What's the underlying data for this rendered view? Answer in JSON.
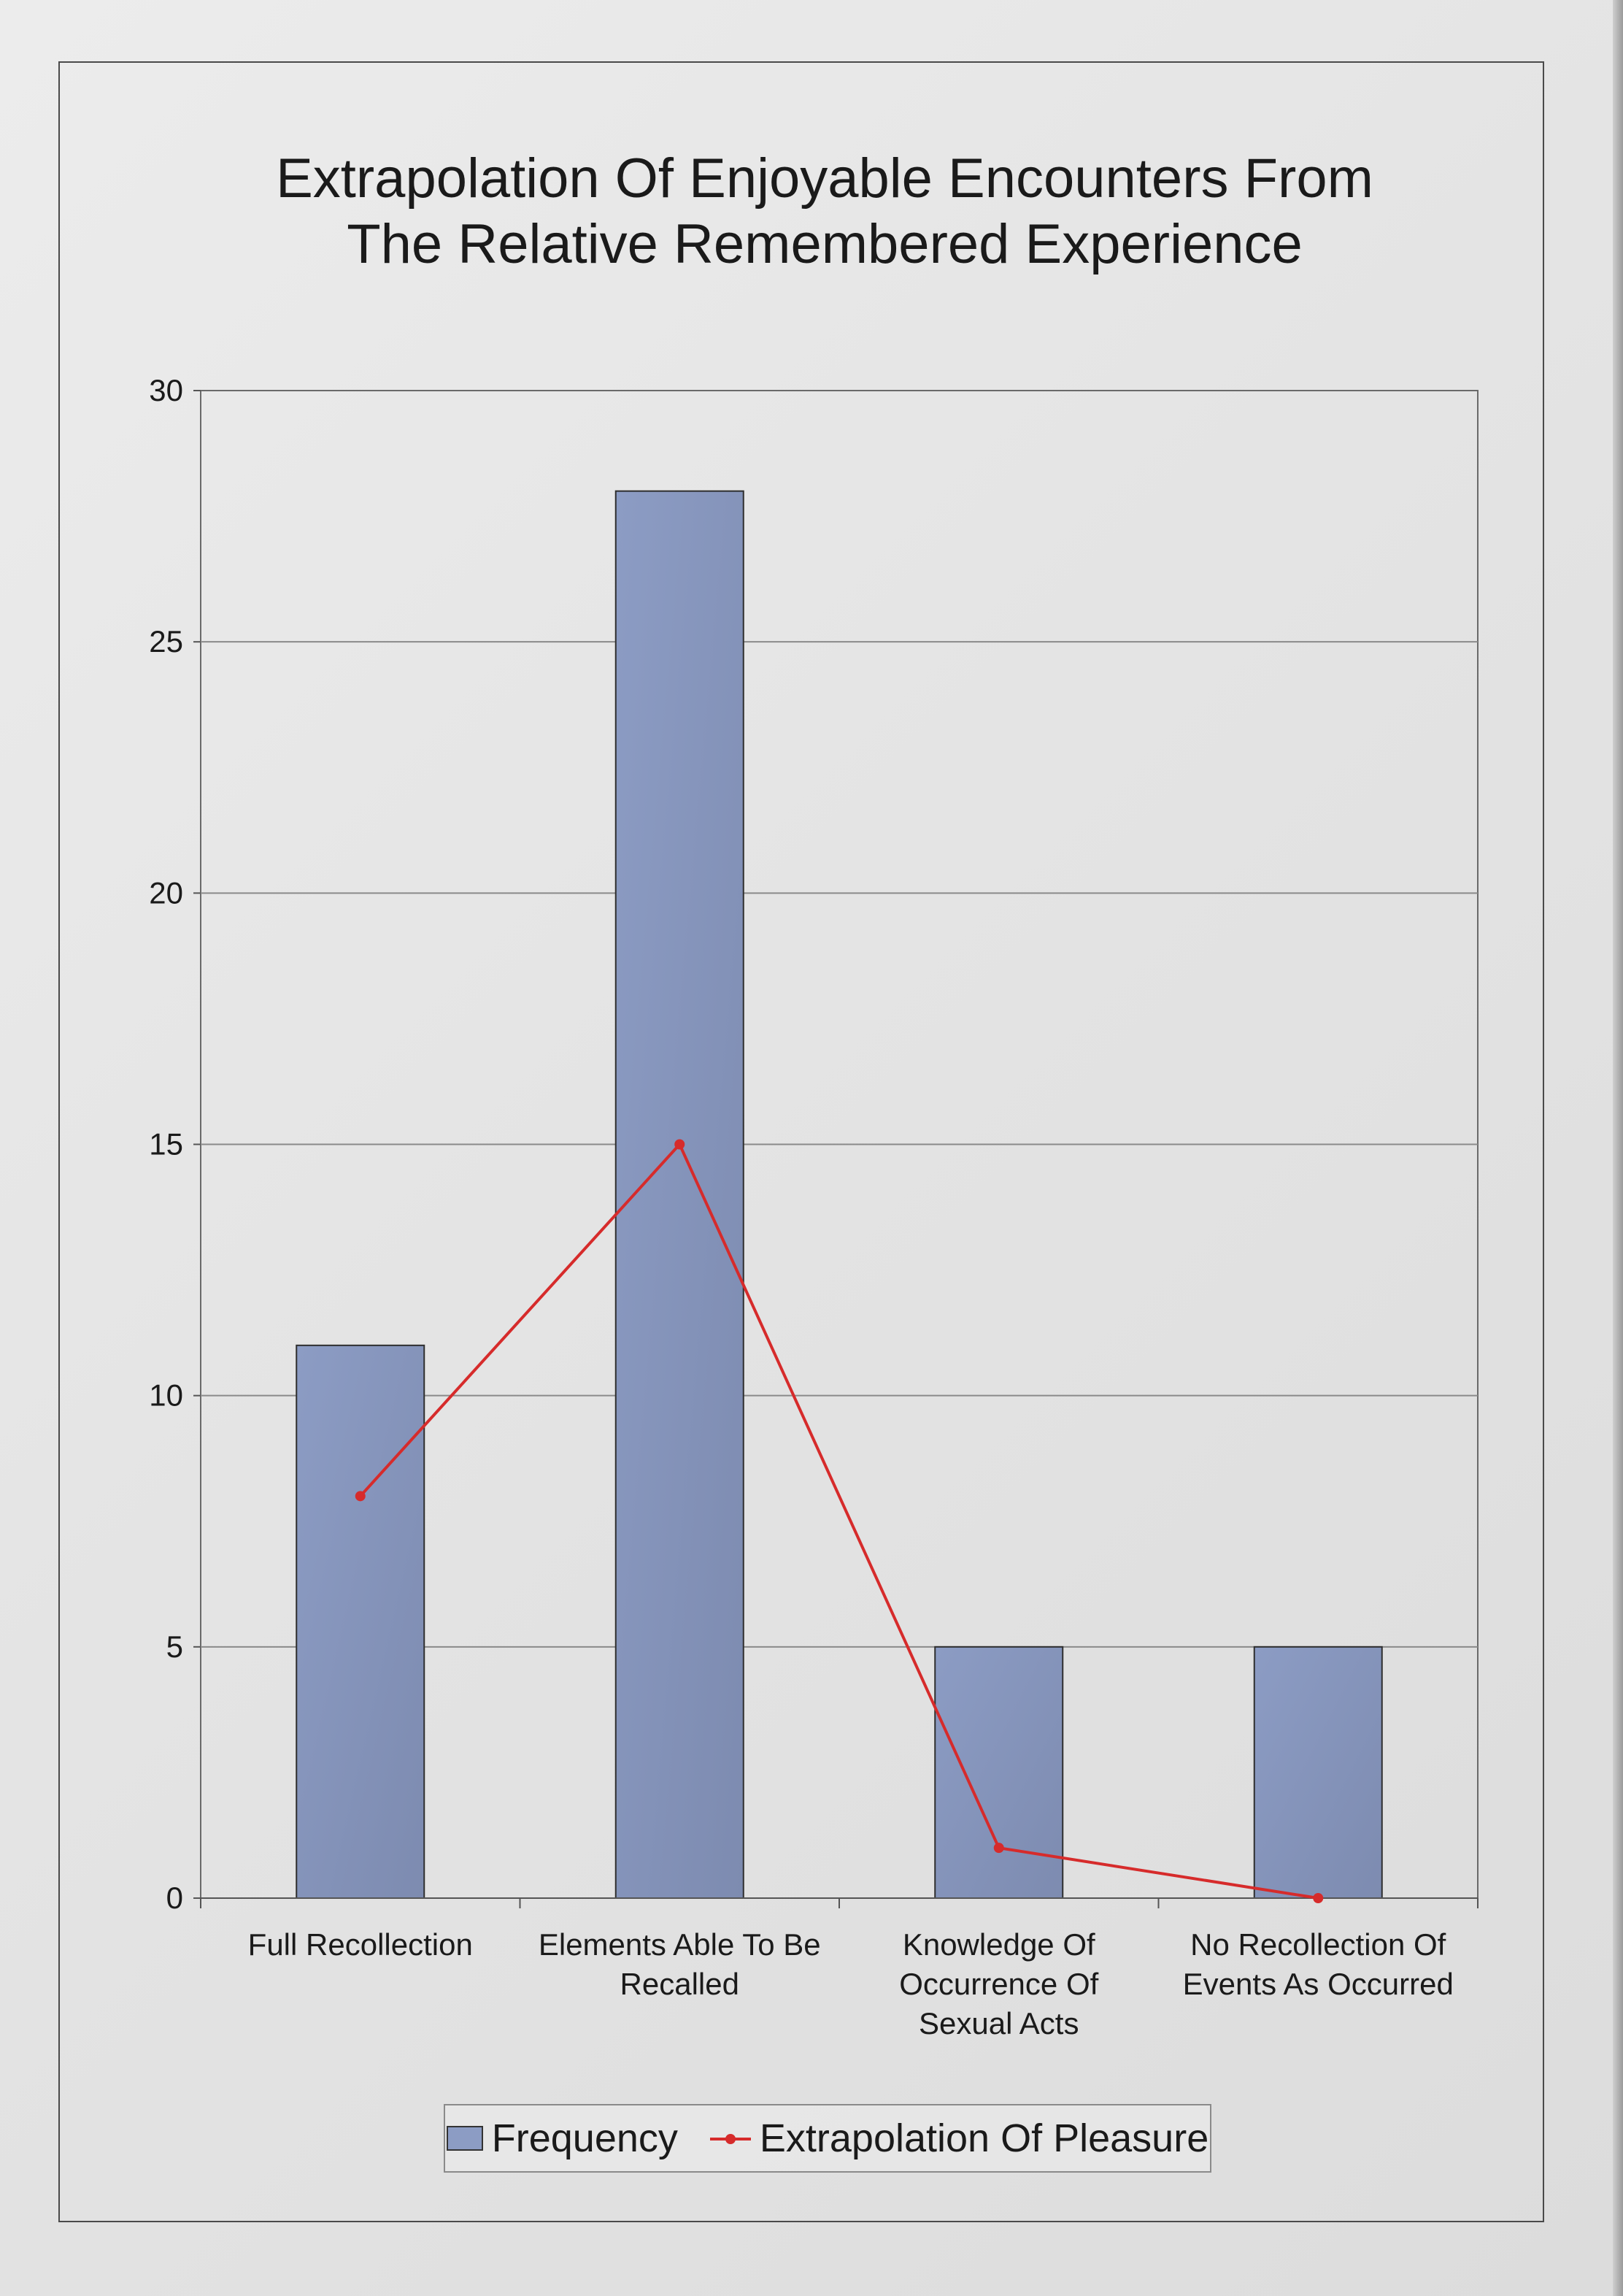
{
  "chart_data": {
    "type": "bar",
    "title_lines": [
      "Extrapolation Of Enjoyable Encounters From",
      "The Relative Remembered Experience"
    ],
    "categories": [
      [
        "Full Recollection"
      ],
      [
        "Elements Able To Be",
        "Recalled"
      ],
      [
        "Knowledge Of",
        "Occurrence Of",
        "Sexual Acts"
      ],
      [
        "No Recollection Of",
        "Events As Occurred"
      ]
    ],
    "series": [
      {
        "name": "Frequency",
        "type": "bar",
        "values": [
          11,
          28,
          5,
          5
        ],
        "color": "#8c9cc4"
      },
      {
        "name": "Extrapolation Of Pleasure",
        "type": "line",
        "values": [
          8,
          15,
          1,
          0
        ],
        "color": "#d62b2b"
      }
    ],
    "ylim": [
      0,
      30
    ],
    "yticks": [
      "0",
      "5",
      "10",
      "15",
      "20",
      "25",
      "30"
    ],
    "grid": true,
    "legend_position": "bottom"
  }
}
